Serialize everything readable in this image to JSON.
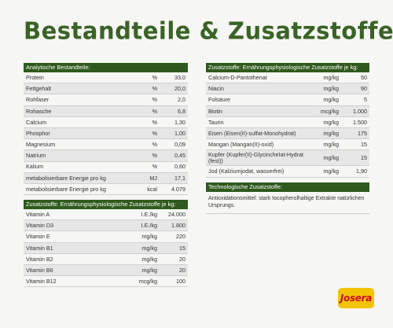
{
  "title": "Bestandteile & Zusatzstoffe",
  "analytic": {
    "header": "Analytische Bestandteile:",
    "rows": [
      {
        "name": "Protein",
        "unit": "%",
        "value": "33,0"
      },
      {
        "name": "Fettgehalt",
        "unit": "%",
        "value": "20,0"
      },
      {
        "name": "Rohfaser",
        "unit": "%",
        "value": "2,0"
      },
      {
        "name": "Rohasche",
        "unit": "%",
        "value": "6,8"
      },
      {
        "name": "Calcium",
        "unit": "%",
        "value": "1,30"
      },
      {
        "name": "Phosphor",
        "unit": "%",
        "value": "1,00"
      },
      {
        "name": "Magnesium",
        "unit": "%",
        "value": "0,09"
      },
      {
        "name": "Natrium",
        "unit": "%",
        "value": "0,45"
      },
      {
        "name": "Kalium",
        "unit": "%",
        "value": "0,60"
      },
      {
        "name": "metabolisierbare Energie pro kg",
        "unit": "MJ",
        "value": "17,1"
      },
      {
        "name": "metabolisierbare Energie pro kg",
        "unit": "kcal",
        "value": "4.079"
      }
    ]
  },
  "vitamins": {
    "header": "Zusatzstoffe: Ernährungsphysiologische Zusatzstoffe je kg:",
    "rows": [
      {
        "name": "Vitamin A",
        "unit": "I.E./kg",
        "value": "24.000"
      },
      {
        "name": "Vitamin D3",
        "unit": "I.E./kg",
        "value": "1.800"
      },
      {
        "name": "Vitamin E",
        "unit": "mg/kg",
        "value": "220"
      },
      {
        "name": "Vitamin B1",
        "unit": "mg/kg",
        "value": "15"
      },
      {
        "name": "Vitamin B2",
        "unit": "mg/kg",
        "value": "20"
      },
      {
        "name": "Vitamin B6",
        "unit": "mg/kg",
        "value": "20"
      },
      {
        "name": "Vitamin B12",
        "unit": "mcg/kg",
        "value": "100"
      }
    ]
  },
  "minerals": {
    "header": "Zusatzstoffe: Ernährungsphysiologische Zusatzstoffe je kg:",
    "rows": [
      {
        "name": "Calcium-D-Pantothenat",
        "unit": "mg/kg",
        "value": "50"
      },
      {
        "name": "Niacin",
        "unit": "mg/kg",
        "value": "90"
      },
      {
        "name": "Folsäure",
        "unit": "mg/kg",
        "value": "5"
      },
      {
        "name": "Biotin",
        "unit": "mcg/kg",
        "value": "1.000"
      },
      {
        "name": "Taurin",
        "unit": "mg/kg",
        "value": "1.500"
      },
      {
        "name": "Eisen (Eisen(II)-sulfat-Monohydrat)",
        "unit": "mg/kg",
        "value": "175"
      },
      {
        "name": "Mangan (Mangan(II)-oxid)",
        "unit": "mg/kg",
        "value": "15"
      },
      {
        "name": "Kupfer (Kupfer(II)-GlycincheIat-Hydrat (fest))",
        "unit": "mg/kg",
        "value": "15",
        "tall": true
      },
      {
        "name": "Jod (Kalziumjodat, wasserfrei)",
        "unit": "mg/kg",
        "value": "1,90"
      }
    ]
  },
  "technological": {
    "header": "Technologische Zusatzstoffe:",
    "text": "Antioxidationsmittel: stark tocopherolhaltige Extrakte natürlichen Ursprungs."
  },
  "brand": "Josera"
}
